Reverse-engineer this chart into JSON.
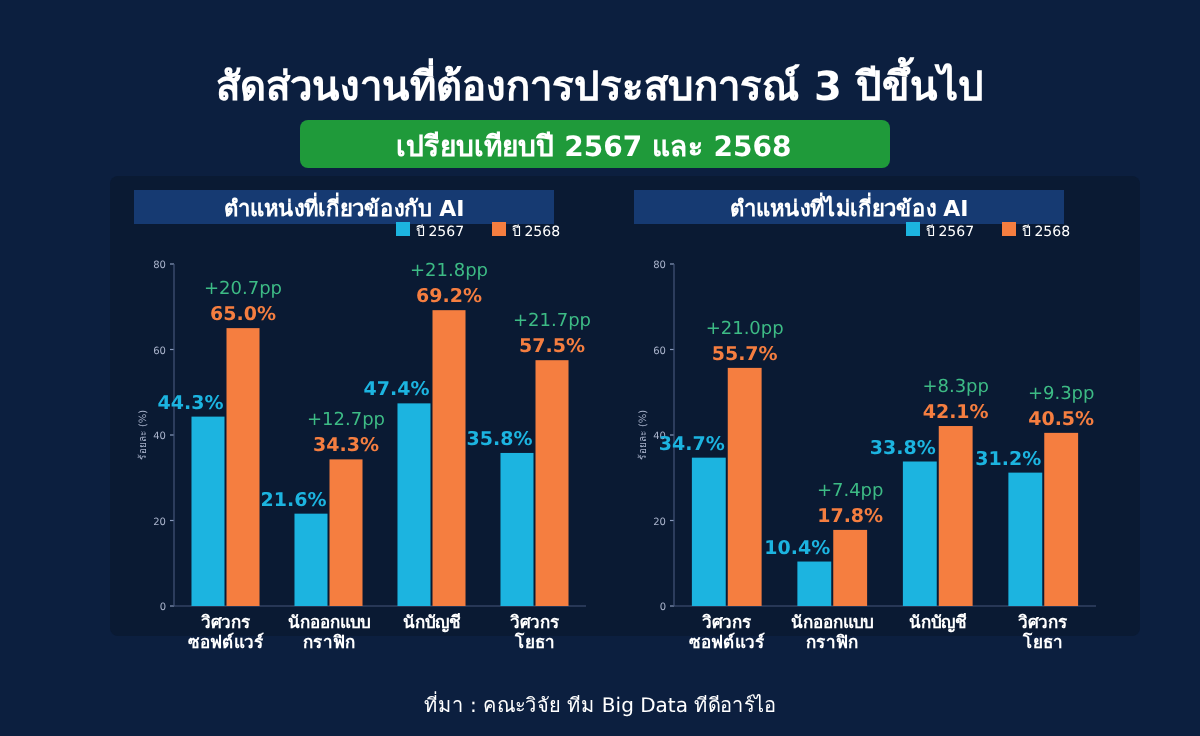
{
  "chart_data": [
    {
      "type": "bar",
      "title": "สัดส่วนงานที่ต้องการประสบการณ์ 3 ปีขึ้นไป",
      "subtitle": "เปรียบเทียบปี 2567 และ 2568",
      "xlabel": "ตำแหน่งที่เกี่ยวข้องกับ AI",
      "ylabel": "ร้อยละ (%)",
      "categories": [
        "วิศวกร ซอฟต์แวร์",
        "นักออกแบบ กราฟิก",
        "นักบัญชี",
        "วิศวกร โยธา"
      ],
      "series": [
        {
          "name": "ปี 2567",
          "color": "#1cb4e0",
          "values": [
            44.3,
            21.6,
            47.4,
            35.8
          ],
          "value_labels": [
            "44.3%",
            "21.6%",
            "47.4%",
            "35.8%"
          ]
        },
        {
          "name": "ปี 2568",
          "color": "#f57e40",
          "values": [
            65.0,
            34.3,
            69.2,
            57.5
          ],
          "value_labels": [
            "65.0%",
            "34.3%",
            "69.2%",
            "57.5%"
          ]
        }
      ],
      "ylim": [
        0,
        80
      ],
      "yticks": [
        0,
        20,
        40,
        60,
        80
      ],
      "legend": "top right",
      "annotations": [
        {
          "text": "+20.7pp",
          "x": "วิศวกร ซอฟต์แวร์",
          "y": 65.0
        },
        {
          "text": "+12.7pp",
          "x": "นักออกแบบ กราฟิก",
          "y": 34.3
        },
        {
          "text": "+21.8pp",
          "x": "นักบัญชี",
          "y": 69.2
        },
        {
          "text": "+21.7pp",
          "x": "วิศวกร โยธา",
          "y": 57.5
        }
      ]
    },
    {
      "type": "bar",
      "xlabel": "ตำแหน่งที่ไม่เกี่ยวข้อง AI",
      "ylabel": "ร้อยละ (%)",
      "categories": [
        "วิศวกร ซอฟต์แวร์",
        "นักออกแบบ กราฟิก",
        "นักบัญชี",
        "วิศวกร โยธา"
      ],
      "series": [
        {
          "name": "ปี 2567",
          "color": "#1cb4e0",
          "values": [
            34.7,
            10.4,
            33.8,
            31.2
          ],
          "value_labels": [
            "34.7%",
            "10.4%",
            "33.8%",
            "31.2%"
          ]
        },
        {
          "name": "ปี 2568",
          "color": "#f57e40",
          "values": [
            55.7,
            17.8,
            42.1,
            40.5
          ],
          "value_labels": [
            "55.7%",
            "17.8%",
            "42.1%",
            "40.5%"
          ]
        }
      ],
      "ylim": [
        0,
        80
      ],
      "yticks": [
        0,
        20,
        40,
        60,
        80
      ],
      "legend": "top right",
      "annotations": [
        {
          "text": "+21.0pp",
          "x": "วิศวกร ซอฟต์แวร์",
          "y": 55.7
        },
        {
          "text": "+7.4pp",
          "x": "นักออกแบบ กราฟิก",
          "y": 17.8
        },
        {
          "text": "+8.3pp",
          "x": "นักบัญชี",
          "y": 42.1
        },
        {
          "text": "+9.3pp",
          "x": "วิศวกร โยธา",
          "y": 40.5
        },
        "ที่มา : คณะวิจัย ทีม Big Data ทีดีอาร์ไอ"
      ]
    }
  ]
}
